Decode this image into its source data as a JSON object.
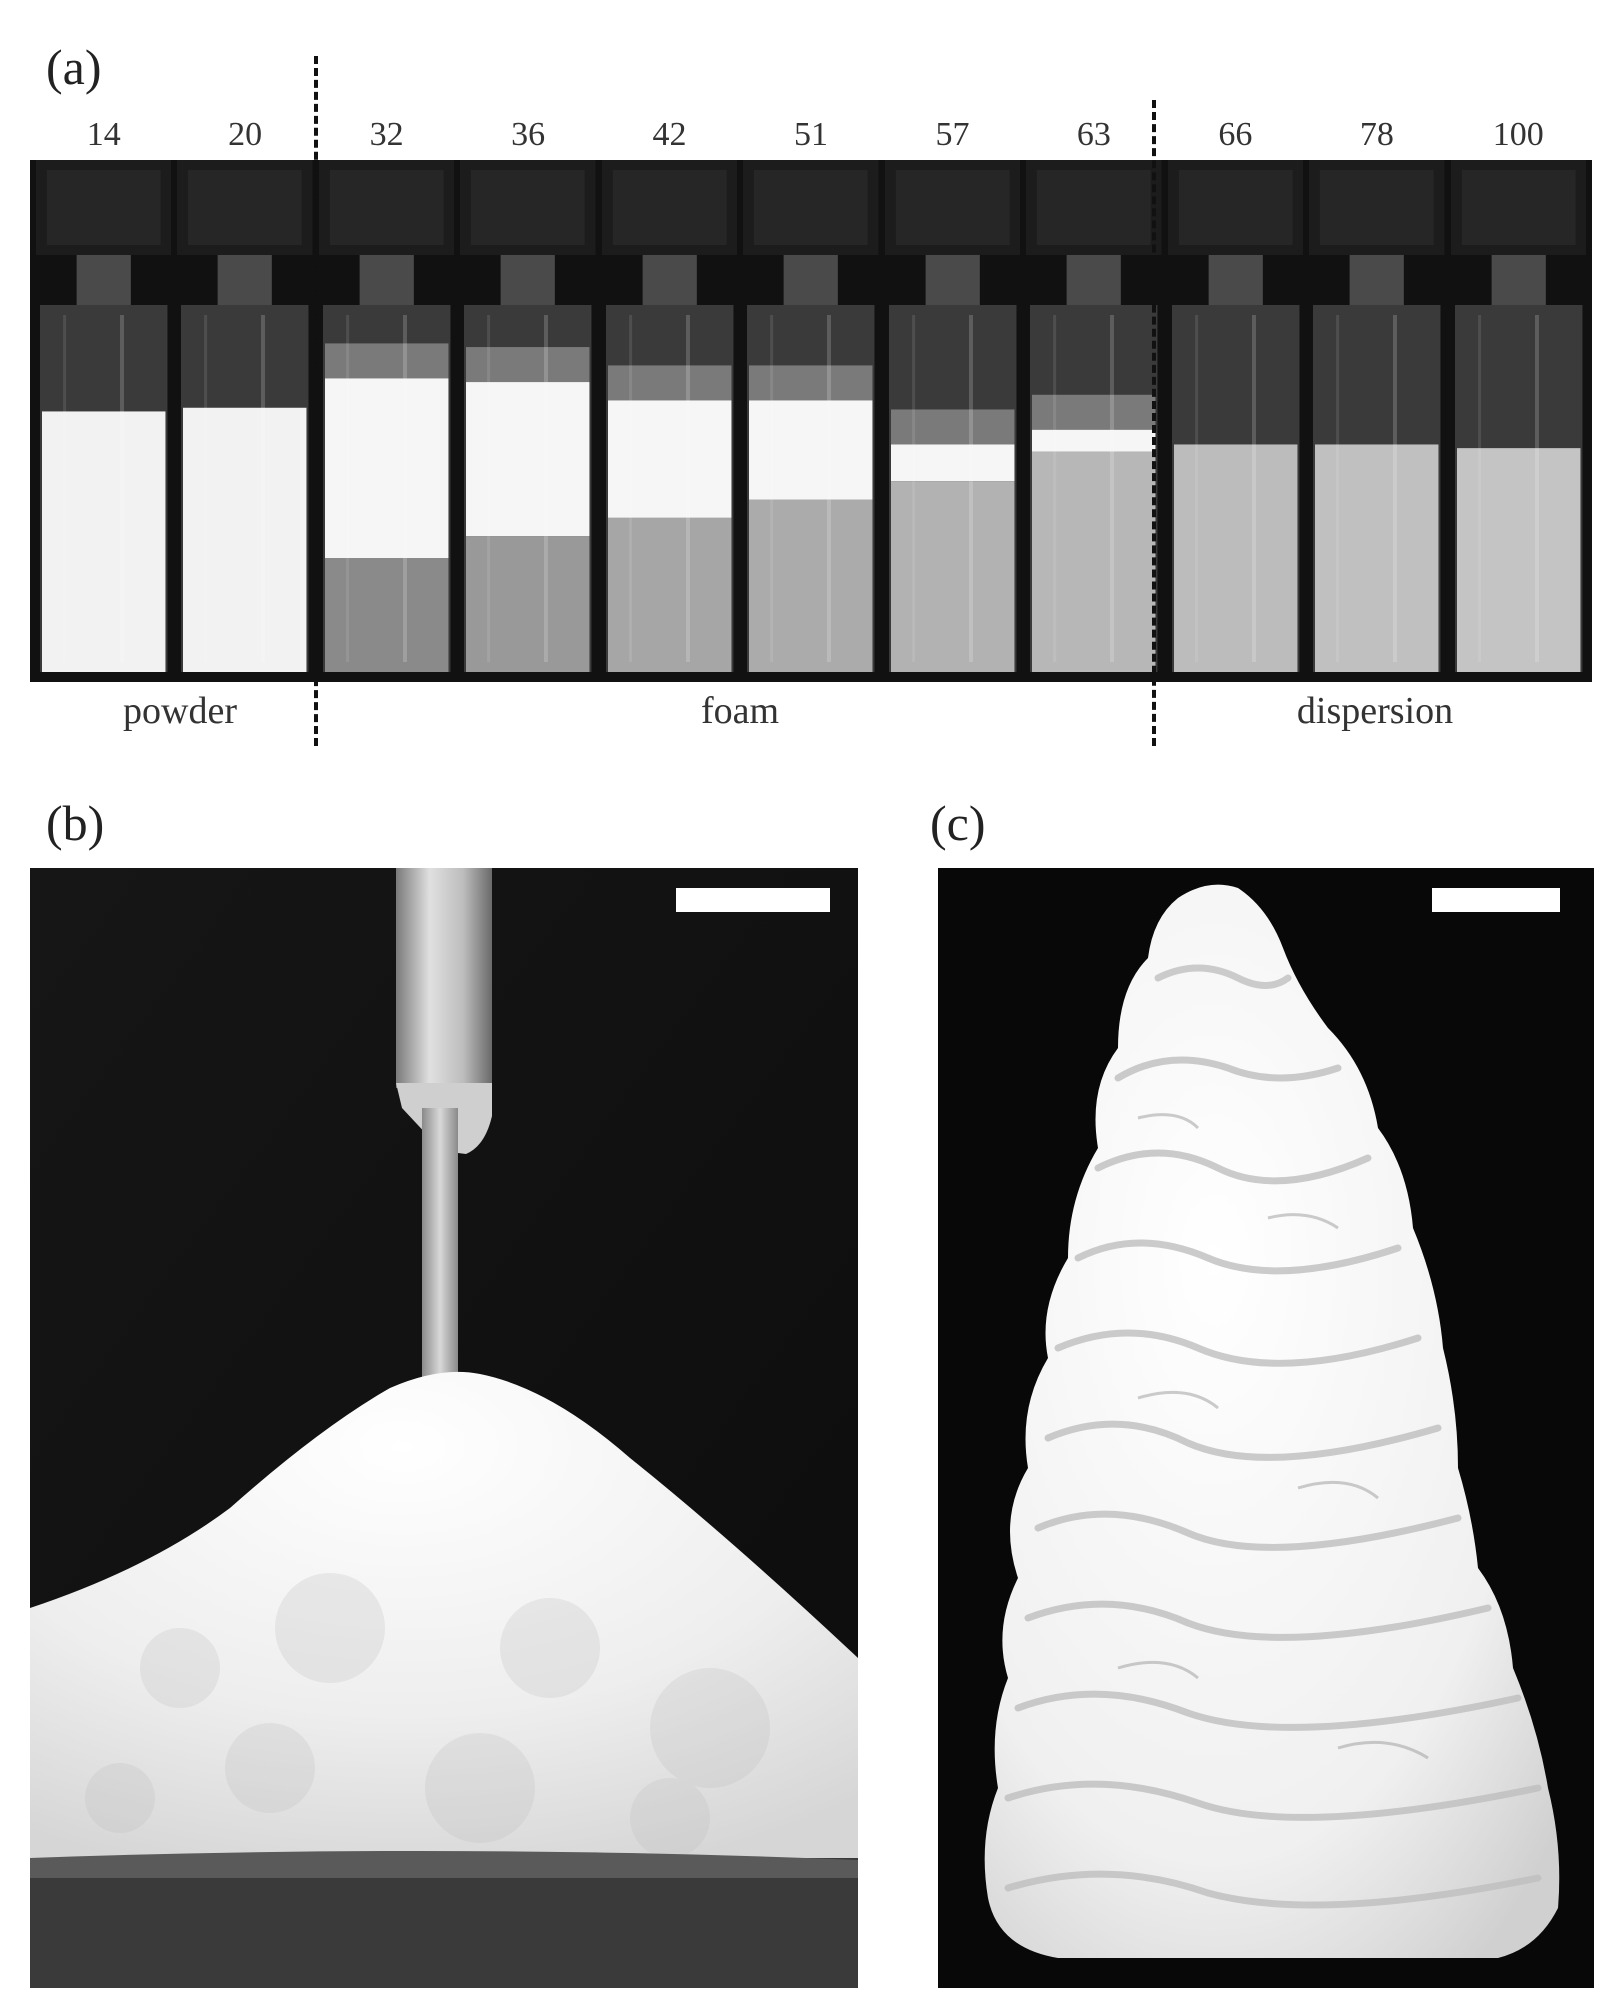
{
  "panel_a": {
    "label": "(a)",
    "vials": [
      {
        "number": "14",
        "state": "powder",
        "liquid_level": 0.0,
        "white_top": 0.71,
        "liquid_shade": "#e6e6e6"
      },
      {
        "number": "20",
        "state": "powder",
        "liquid_level": 0.0,
        "white_top": 0.72,
        "liquid_shade": "#e2e2e2"
      },
      {
        "number": "32",
        "state": "foam",
        "liquid_level": 0.31,
        "white_top": 0.8,
        "liquid_shade": "#8a8a8a"
      },
      {
        "number": "36",
        "state": "foam",
        "liquid_level": 0.37,
        "white_top": 0.79,
        "liquid_shade": "#999999"
      },
      {
        "number": "42",
        "state": "foam",
        "liquid_level": 0.42,
        "white_top": 0.74,
        "liquid_shade": "#a6a6a6"
      },
      {
        "number": "51",
        "state": "foam",
        "liquid_level": 0.47,
        "white_top": 0.74,
        "liquid_shade": "#ababab"
      },
      {
        "number": "57",
        "state": "foam",
        "liquid_level": 0.52,
        "white_top": 0.62,
        "liquid_shade": "#b2b2b2"
      },
      {
        "number": "63",
        "state": "foam",
        "liquid_level": 0.6,
        "white_top": 0.66,
        "liquid_shade": "#b7b7b7"
      },
      {
        "number": "66",
        "state": "dispersion",
        "liquid_level": 0.62,
        "white_top": 0.0,
        "liquid_shade": "#bcbcbc"
      },
      {
        "number": "78",
        "state": "dispersion",
        "liquid_level": 0.62,
        "white_top": 0.0,
        "liquid_shade": "#c0c0c0"
      },
      {
        "number": "100",
        "state": "dispersion",
        "liquid_level": 0.61,
        "white_top": 0.0,
        "liquid_shade": "#c4c4c4"
      }
    ],
    "state_labels": {
      "powder": "powder",
      "foam": "foam",
      "dispersion": "dispersion"
    }
  },
  "panel_b": {
    "label": "(b)"
  },
  "panel_c": {
    "label": "(c)"
  }
}
